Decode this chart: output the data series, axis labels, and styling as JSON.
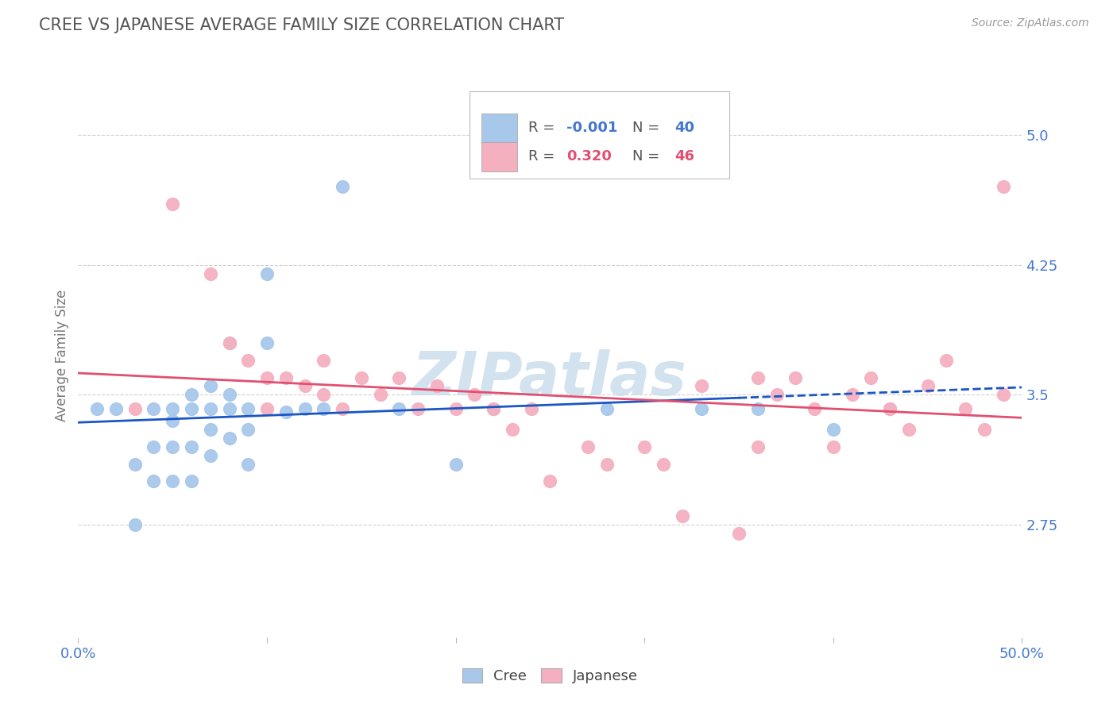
{
  "title": "CREE VS JAPANESE AVERAGE FAMILY SIZE CORRELATION CHART",
  "source_text": "Source: ZipAtlas.com",
  "ylabel": "Average Family Size",
  "xlim": [
    0.0,
    0.5
  ],
  "ylim": [
    2.1,
    5.35
  ],
  "yticks": [
    2.75,
    3.5,
    4.25,
    5.0
  ],
  "xticks": [
    0.0,
    0.1,
    0.2,
    0.3,
    0.4,
    0.5
  ],
  "xticklabels": [
    "0.0%",
    "",
    "",
    "",
    "",
    "50.0%"
  ],
  "background_color": "#ffffff",
  "grid_color": "#cccccc",
  "cree_color": "#a8c8ea",
  "japanese_color": "#f5b0c0",
  "cree_line_color": "#1a56c4",
  "japanese_line_color": "#e05070",
  "title_color": "#555555",
  "axis_color": "#4477cc",
  "legend_R_color": "#4477cc",
  "watermark_color": "#ccdded",
  "cree_x": [
    0.01,
    0.02,
    0.03,
    0.03,
    0.04,
    0.04,
    0.04,
    0.05,
    0.05,
    0.05,
    0.05,
    0.06,
    0.06,
    0.06,
    0.06,
    0.07,
    0.07,
    0.07,
    0.07,
    0.08,
    0.08,
    0.08,
    0.08,
    0.09,
    0.09,
    0.09,
    0.1,
    0.1,
    0.11,
    0.12,
    0.13,
    0.14,
    0.17,
    0.2,
    0.22,
    0.28,
    0.33,
    0.36,
    0.4,
    0.43
  ],
  "cree_y": [
    3.42,
    3.42,
    3.1,
    2.75,
    3.42,
    3.2,
    3.0,
    3.42,
    3.35,
    3.2,
    3.0,
    3.5,
    3.42,
    3.2,
    3.0,
    3.55,
    3.42,
    3.3,
    3.15,
    3.8,
    3.5,
    3.42,
    3.25,
    3.42,
    3.3,
    3.1,
    4.2,
    3.8,
    3.4,
    3.42,
    3.42,
    4.7,
    3.42,
    3.1,
    3.42,
    3.42,
    3.42,
    3.42,
    3.3,
    3.42
  ],
  "japanese_x": [
    0.03,
    0.05,
    0.07,
    0.08,
    0.09,
    0.1,
    0.1,
    0.11,
    0.12,
    0.13,
    0.13,
    0.14,
    0.15,
    0.16,
    0.17,
    0.18,
    0.19,
    0.2,
    0.21,
    0.22,
    0.23,
    0.24,
    0.25,
    0.27,
    0.28,
    0.3,
    0.31,
    0.32,
    0.33,
    0.35,
    0.36,
    0.36,
    0.37,
    0.38,
    0.39,
    0.4,
    0.41,
    0.42,
    0.43,
    0.44,
    0.45,
    0.46,
    0.47,
    0.48,
    0.49,
    0.49
  ],
  "japanese_y": [
    3.42,
    4.6,
    4.2,
    3.8,
    3.7,
    3.6,
    3.42,
    3.6,
    3.55,
    3.7,
    3.5,
    3.42,
    3.6,
    3.5,
    3.6,
    3.42,
    3.55,
    3.42,
    3.5,
    3.42,
    3.3,
    3.42,
    3.0,
    3.2,
    3.1,
    3.2,
    3.1,
    2.8,
    3.55,
    2.7,
    3.6,
    3.2,
    3.5,
    3.6,
    3.42,
    3.2,
    3.5,
    3.6,
    3.42,
    3.3,
    3.55,
    3.7,
    3.42,
    3.3,
    3.5,
    4.7
  ]
}
